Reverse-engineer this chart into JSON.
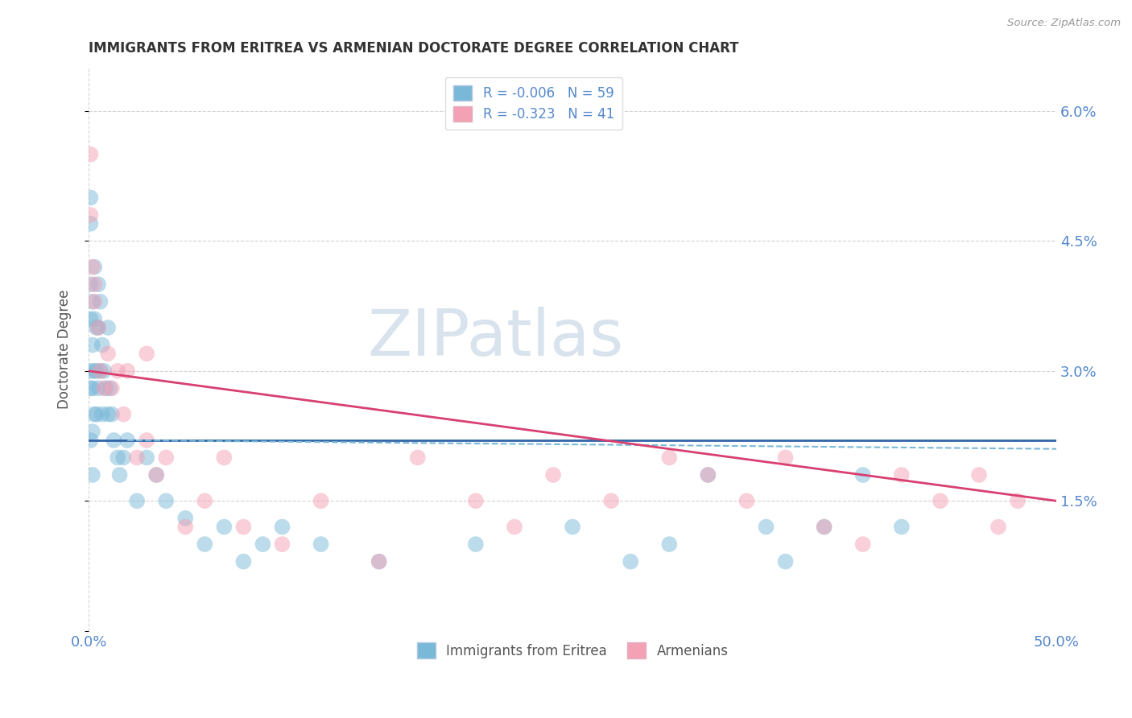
{
  "title": "IMMIGRANTS FROM ERITREA VS ARMENIAN DOCTORATE DEGREE CORRELATION CHART",
  "source": "Source: ZipAtlas.com",
  "ylabel": "Doctorate Degree",
  "xlim": [
    0.0,
    0.5
  ],
  "ylim": [
    0.0,
    0.065
  ],
  "ytick_values": [
    0.0,
    0.015,
    0.03,
    0.045,
    0.06
  ],
  "ytick_labels_right": [
    "",
    "1.5%",
    "3.0%",
    "4.5%",
    "6.0%"
  ],
  "xtick_values": [
    0.0,
    0.5
  ],
  "xtick_labels": [
    "0.0%",
    "50.0%"
  ],
  "legend_entries": [
    {
      "label": "R = -0.006   N = 59",
      "color": "#a8c8f0"
    },
    {
      "label": "R = -0.323   N = 41",
      "color": "#f4a8bc"
    }
  ],
  "legend_bottom": [
    "Immigrants from Eritrea",
    "Armenians"
  ],
  "blue_scatter_x": [
    0.001,
    0.001,
    0.001,
    0.001,
    0.001,
    0.001,
    0.001,
    0.002,
    0.002,
    0.002,
    0.002,
    0.002,
    0.003,
    0.003,
    0.003,
    0.003,
    0.004,
    0.004,
    0.004,
    0.005,
    0.005,
    0.005,
    0.006,
    0.006,
    0.007,
    0.007,
    0.008,
    0.009,
    0.01,
    0.01,
    0.011,
    0.012,
    0.013,
    0.015,
    0.016,
    0.018,
    0.02,
    0.025,
    0.03,
    0.035,
    0.04,
    0.05,
    0.06,
    0.07,
    0.08,
    0.09,
    0.1,
    0.12,
    0.15,
    0.2,
    0.25,
    0.28,
    0.3,
    0.32,
    0.35,
    0.36,
    0.38,
    0.4,
    0.42
  ],
  "blue_scatter_y": [
    0.05,
    0.047,
    0.04,
    0.036,
    0.03,
    0.028,
    0.022,
    0.038,
    0.033,
    0.028,
    0.023,
    0.018,
    0.042,
    0.036,
    0.03,
    0.025,
    0.035,
    0.03,
    0.025,
    0.04,
    0.035,
    0.028,
    0.038,
    0.03,
    0.033,
    0.025,
    0.03,
    0.028,
    0.035,
    0.025,
    0.028,
    0.025,
    0.022,
    0.02,
    0.018,
    0.02,
    0.022,
    0.015,
    0.02,
    0.018,
    0.015,
    0.013,
    0.01,
    0.012,
    0.008,
    0.01,
    0.012,
    0.01,
    0.008,
    0.01,
    0.012,
    0.008,
    0.01,
    0.018,
    0.012,
    0.008,
    0.012,
    0.018,
    0.012
  ],
  "pink_scatter_x": [
    0.001,
    0.001,
    0.002,
    0.003,
    0.003,
    0.005,
    0.006,
    0.008,
    0.01,
    0.012,
    0.015,
    0.018,
    0.02,
    0.025,
    0.03,
    0.03,
    0.035,
    0.04,
    0.05,
    0.06,
    0.07,
    0.08,
    0.1,
    0.12,
    0.15,
    0.17,
    0.2,
    0.22,
    0.24,
    0.27,
    0.3,
    0.32,
    0.34,
    0.36,
    0.38,
    0.4,
    0.42,
    0.44,
    0.46,
    0.47,
    0.48
  ],
  "pink_scatter_y": [
    0.055,
    0.048,
    0.042,
    0.04,
    0.038,
    0.035,
    0.03,
    0.028,
    0.032,
    0.028,
    0.03,
    0.025,
    0.03,
    0.02,
    0.022,
    0.032,
    0.018,
    0.02,
    0.012,
    0.015,
    0.02,
    0.012,
    0.01,
    0.015,
    0.008,
    0.02,
    0.015,
    0.012,
    0.018,
    0.015,
    0.02,
    0.018,
    0.015,
    0.02,
    0.012,
    0.01,
    0.018,
    0.015,
    0.018,
    0.012,
    0.015
  ],
  "blue_line_x": [
    0.0,
    0.5
  ],
  "blue_line_y": [
    0.022,
    0.022
  ],
  "pink_line_x": [
    0.0,
    0.5
  ],
  "pink_line_y": [
    0.03,
    0.015
  ],
  "blue_color": "#7ab8d8",
  "pink_color": "#f4a0b5",
  "blue_line_color": "#3366aa",
  "pink_line_color": "#d84070",
  "blue_dashed_line_color": "#7ab8d8",
  "background_color": "#ffffff",
  "grid_color": "#c8c8c8",
  "title_color": "#333333",
  "axis_label_color": "#555555",
  "tick_label_color": "#5588cc",
  "watermark_text": "ZIPatlas",
  "watermark_color": "#c8d8e8"
}
